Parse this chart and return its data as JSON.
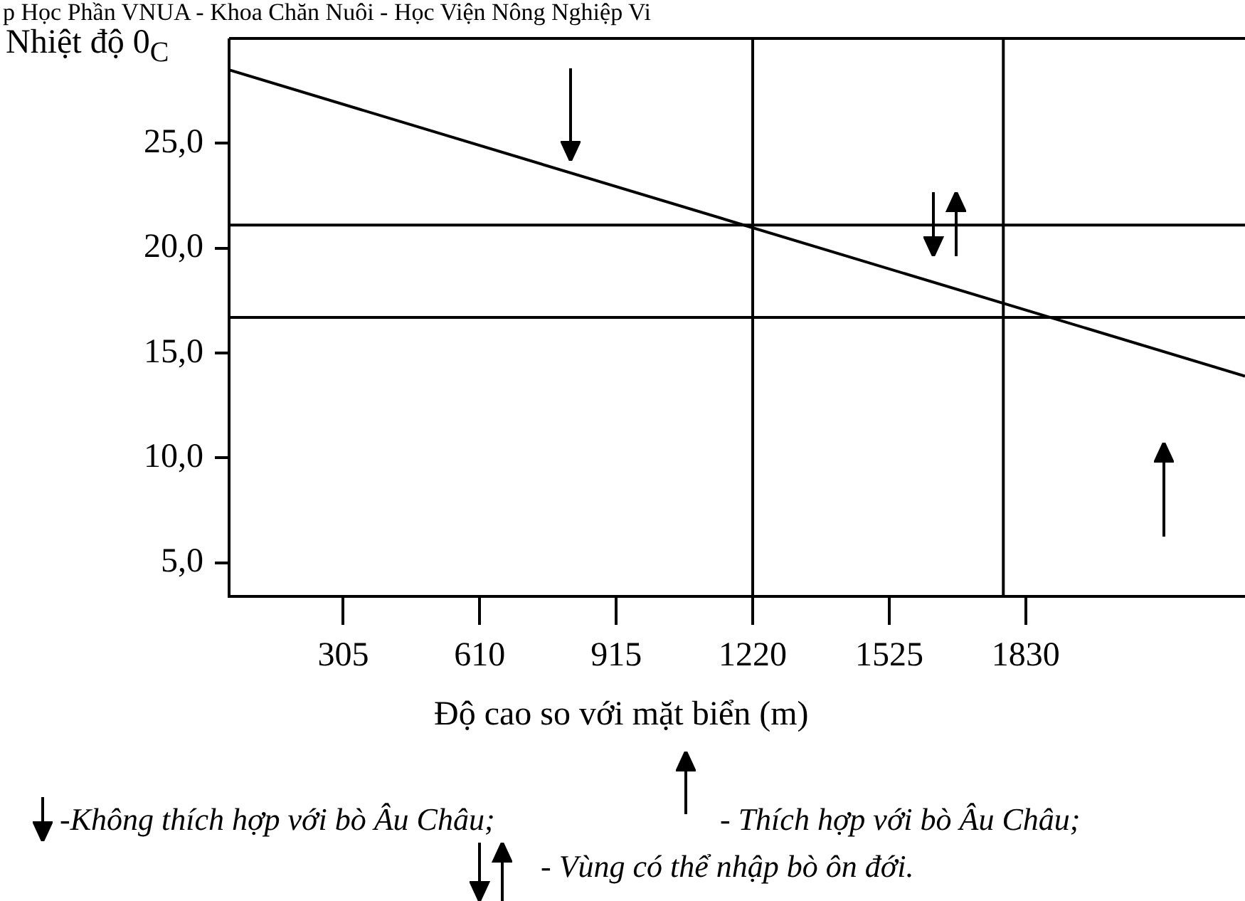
{
  "chart_data": {
    "type": "line",
    "ylabel": "Nhiệt độ 0$_{C}$",
    "xlabel": "Độ cao so với mặt biển (m)",
    "x": [
      50,
      2320
    ],
    "series": [
      {
        "color": "#000000",
        "values": [
          28.5,
          13.9
        ]
      }
    ],
    "xlim": [
      50,
      2320
    ],
    "xticks": [
      305,
      610,
      915,
      1220,
      1525,
      1830
    ],
    "ylim": [
      3.4,
      30
    ],
    "yticks": [
      {
        "value": 5,
        "label": "5,0"
      },
      {
        "value": 10,
        "label": "10,0"
      },
      {
        "value": 15,
        "label": "15,0"
      },
      {
        "value": 20,
        "label": "20,0"
      },
      {
        "value": 25,
        "label": "25,0"
      }
    ],
    "ref_lines": [
      {
        "axis": "x",
        "value": 1220,
        "color": "#000000"
      },
      {
        "axis": "x",
        "value": 1780,
        "color": "#000000"
      },
      {
        "axis": "y",
        "value": 21.1,
        "color": "#000000"
      },
      {
        "axis": "y",
        "value": 16.7,
        "color": "#000000"
      }
    ],
    "grid": false,
    "legend": false,
    "marker": "none",
    "line_style": "solid",
    "annotations": [
      "p Học Phần VNUA - Khoa Chăn Nuôi - Học Viện Nông Nghiệp Vi",
      "-Không thích hợp với bò Âu Châu;",
      "- Thích hợp với bò Âu Châu;",
      "- Vùng có thể nhập bò ôn đới."
    ]
  }
}
